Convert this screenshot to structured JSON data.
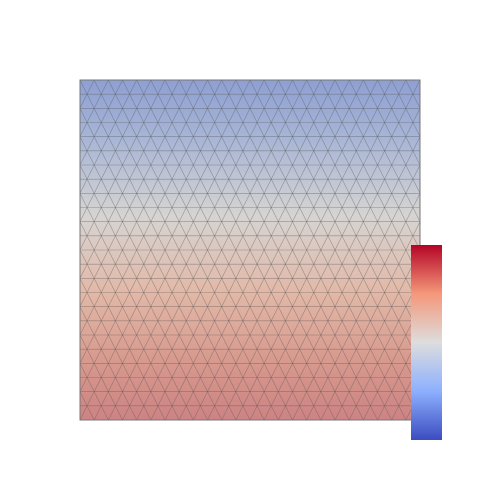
{
  "view": {
    "background": "#ffffff"
  },
  "mesh": {
    "type": "triangular",
    "rows": 24,
    "columns": 24,
    "edge_color": "#555555",
    "surface_opacity": 0.6
  },
  "field": {
    "colormap": "coolwarm",
    "direction": "vertical",
    "low_color": "#3b4cc0",
    "mid_color": "#dddddd",
    "high_color": "#b40426"
  },
  "colorbar": {
    "orientation": "vertical",
    "high_end": "top",
    "stops": [
      "#b40426",
      "#f4987a",
      "#dddddd",
      "#8db0fe",
      "#3b4cc0"
    ]
  }
}
